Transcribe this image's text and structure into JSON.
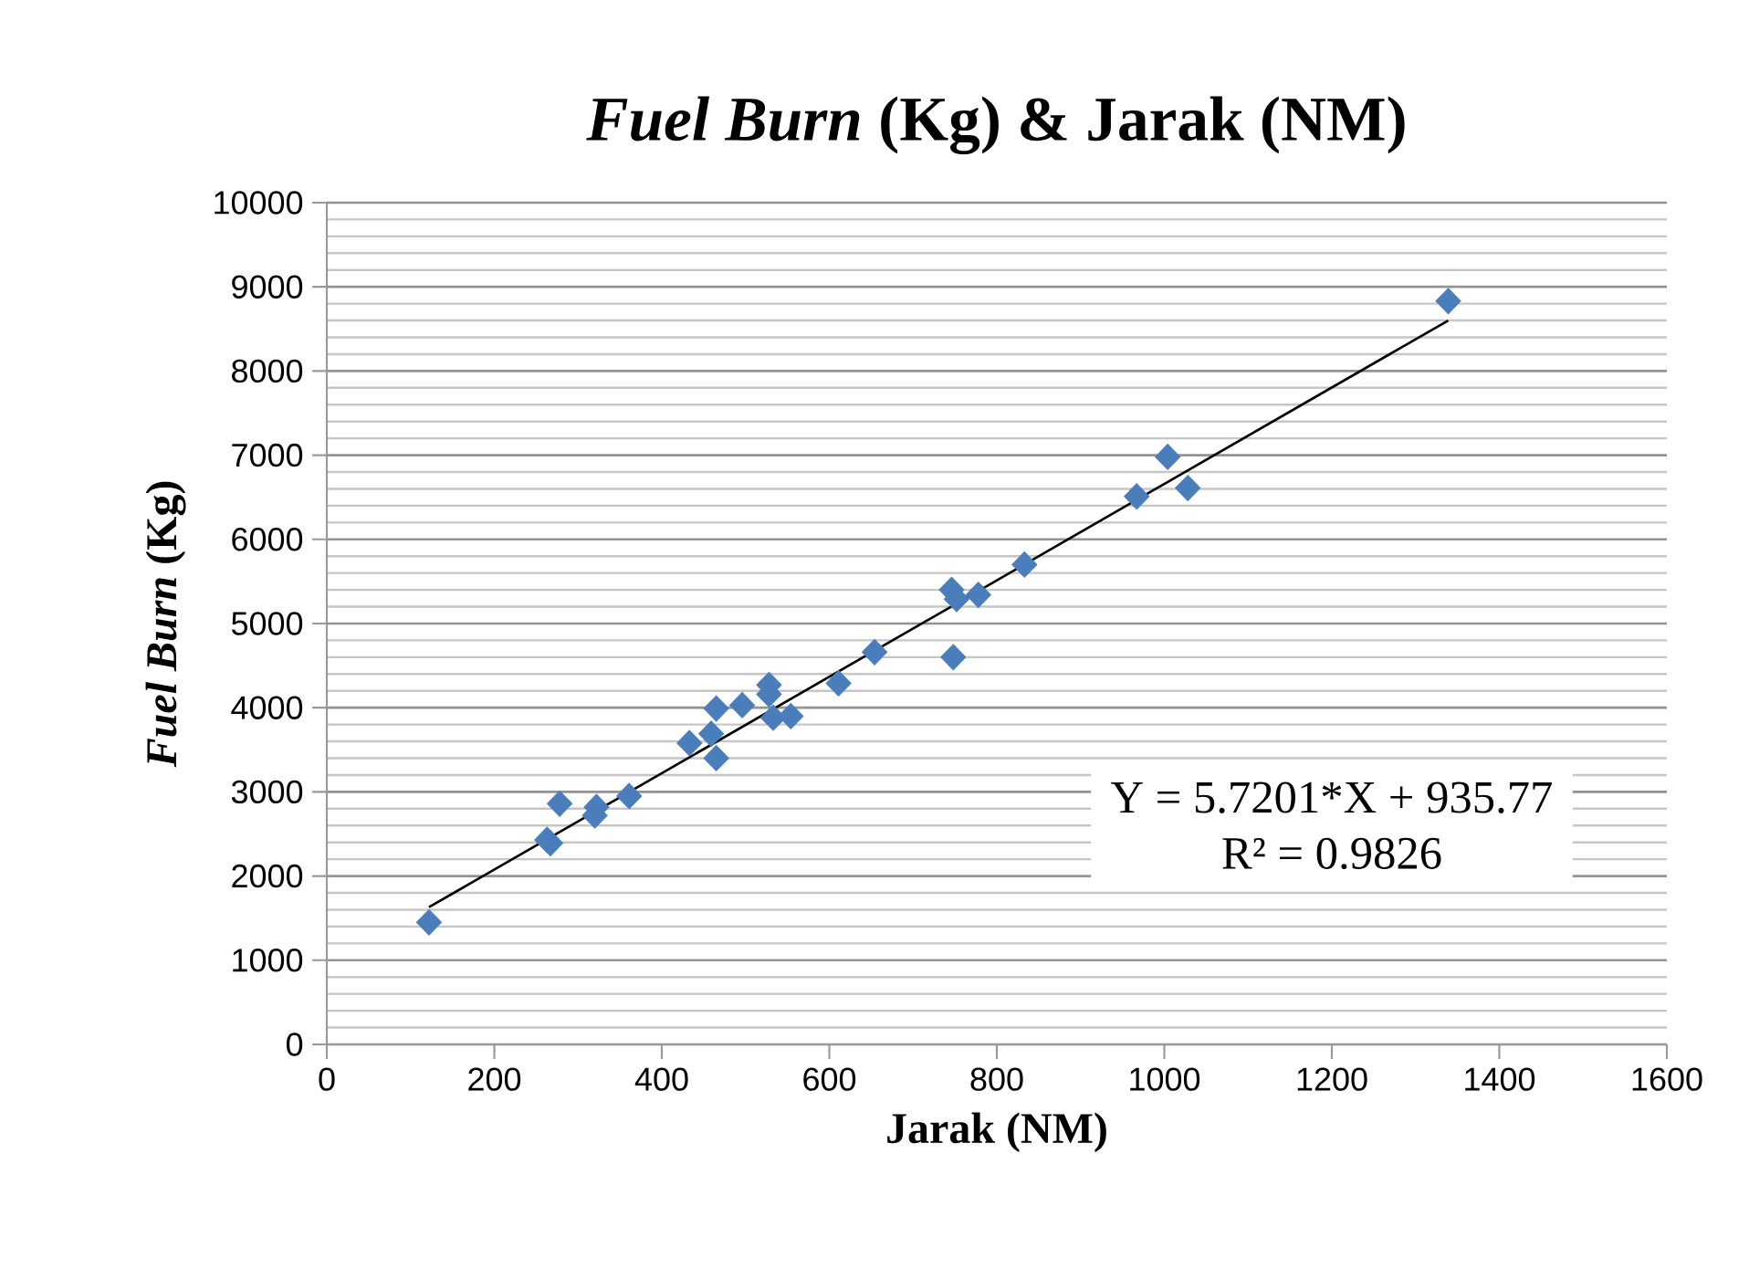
{
  "chart_data": {
    "type": "scatter",
    "title": "*Fuel Burn* (Kg) & Jarak (NM)",
    "xlabel": "Jarak (NM)",
    "ylabel": "*Fuel Burn* (Kg)",
    "xlim": [
      0,
      1600
    ],
    "xticks": [
      0,
      200,
      400,
      600,
      800,
      1000,
      1200,
      1400,
      1600
    ],
    "ylim": [
      0,
      10000
    ],
    "yticks": [
      0,
      1000,
      2000,
      3000,
      4000,
      5000,
      6000,
      7000,
      8000,
      9000,
      10000
    ],
    "grid": "y",
    "series": [
      {
        "color": "#4a7ebb",
        "marker": "diamond",
        "x": [
          122,
          263,
          267,
          278,
          320,
          322,
          361,
          433,
          459,
          465,
          465,
          496,
          528,
          528,
          533,
          554,
          611,
          654,
          746,
          748,
          752,
          778,
          833,
          967,
          1004,
          1028,
          1339
        ],
        "values": [
          1450,
          2430,
          2390,
          2860,
          2720,
          2820,
          2950,
          3580,
          3690,
          3990,
          3400,
          4030,
          4270,
          4160,
          3880,
          3900,
          4290,
          4660,
          5400,
          4600,
          5290,
          5340,
          5700,
          6510,
          6980,
          6610,
          8830
        ]
      },
      {
        "type": "line",
        "marker": "none",
        "color": "#000000",
        "x": [
          122,
          1339
        ],
        "values": [
          1630,
          8600
        ]
      }
    ],
    "annotations": [
      "Y = 5.7201*X + 935.77",
      "R² = 0.9826"
    ]
  }
}
